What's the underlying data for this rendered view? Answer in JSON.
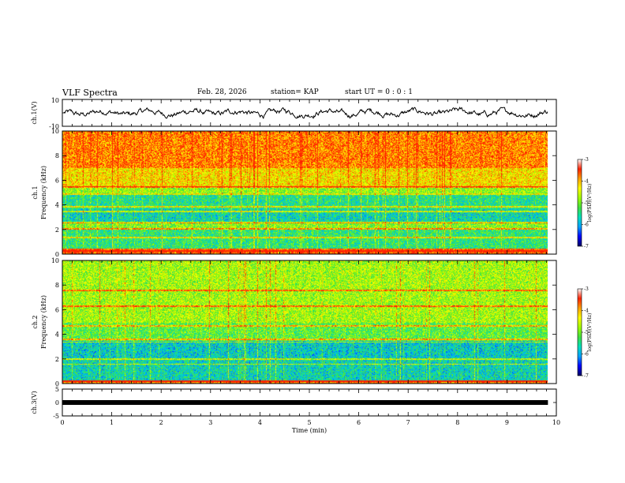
{
  "header": {
    "title": "VLF Spectra",
    "date": "Feb. 28, 2026",
    "station": "station= KAP",
    "start": "start  UT =   0 : 0  : 1"
  },
  "colors": {
    "trace": "#000000",
    "axis": "#000000",
    "colormap": [
      "#000060",
      "#0000ff",
      "#00a0ff",
      "#00e0c0",
      "#40e040",
      "#a0ff00",
      "#ffff00",
      "#ffa000",
      "#ff2000",
      "#ffffff"
    ]
  },
  "chart_data": [
    {
      "type": "line",
      "id": "ch1-trace",
      "ylabel": "ch.1(V)",
      "ylim": [
        -10,
        10
      ],
      "yticks": [
        "10",
        "-10"
      ],
      "xlim": [
        0,
        10
      ],
      "description_values": "oscillating noise trace between approx -3 and 3 V"
    },
    {
      "type": "heatmap",
      "id": "ch1-spectrogram",
      "ylabel": "ch.1 Frequency (kHz)",
      "ylim": [
        0,
        10
      ],
      "yticks": [
        "0",
        "2",
        "4",
        "6",
        "8",
        "10"
      ],
      "xlim": [
        0,
        9.83
      ],
      "colorbar": {
        "label": "log(PSD)(V²/Hz)",
        "range": [
          -7,
          -3
        ],
        "ticks": [
          "-3",
          "-4",
          "-5",
          "-6",
          "-7"
        ]
      },
      "bands_khz": [
        {
          "from": 0,
          "to": 0.5,
          "level": -3.3
        },
        {
          "from": 0.5,
          "to": 2,
          "level": -5.3
        },
        {
          "from": 2,
          "to": 2.6,
          "level": -4.8
        },
        {
          "from": 2.6,
          "to": 3.7,
          "level": -5.6
        },
        {
          "from": 3.7,
          "to": 5.0,
          "level": -5.4
        },
        {
          "from": 5.0,
          "to": 5.5,
          "level": -4.7
        },
        {
          "from": 5.5,
          "to": 7.0,
          "level": -4.0
        },
        {
          "from": 7.0,
          "to": 10,
          "level": -3.5
        }
      ],
      "lines_khz": [
        0.3,
        1.4,
        2.1,
        2.6,
        3.5,
        3.9,
        4.9,
        5.5
      ]
    },
    {
      "type": "heatmap",
      "id": "ch2-spectrogram",
      "ylabel": "ch.2 Frequency (kHz)",
      "ylim": [
        0,
        10
      ],
      "yticks": [
        "0",
        "2",
        "4",
        "6",
        "8",
        "10"
      ],
      "xlim": [
        0,
        9.83
      ],
      "colorbar": {
        "label": "log(PSD)(V²/Hz)",
        "range": [
          -7,
          -3
        ],
        "ticks": [
          "-3",
          "-4",
          "-5",
          "-6",
          "-7"
        ]
      },
      "bands_khz": [
        {
          "from": 0,
          "to": 0.3,
          "level": -3.5
        },
        {
          "from": 0.3,
          "to": 2.0,
          "level": -5.6
        },
        {
          "from": 2.0,
          "to": 3.5,
          "level": -5.7
        },
        {
          "from": 3.5,
          "to": 5.0,
          "level": -5.0
        },
        {
          "from": 5.0,
          "to": 10,
          "level": -4.6
        }
      ],
      "lines_khz": [
        0.2,
        1.6,
        2.0,
        3.4,
        3.6,
        4.7,
        6.3,
        7.6
      ]
    },
    {
      "type": "line",
      "id": "ch3-trace",
      "ylabel": "ch.3(V)",
      "ylim": [
        -5,
        5
      ],
      "yticks": [
        "5",
        "0",
        "-5"
      ],
      "xlim": [
        0,
        10
      ],
      "constant_value": 0
    }
  ],
  "xaxis": {
    "label": "Time  (min)",
    "ticks": [
      "0",
      "1",
      "2",
      "3",
      "4",
      "5",
      "6",
      "7",
      "8",
      "9",
      "10"
    ]
  }
}
